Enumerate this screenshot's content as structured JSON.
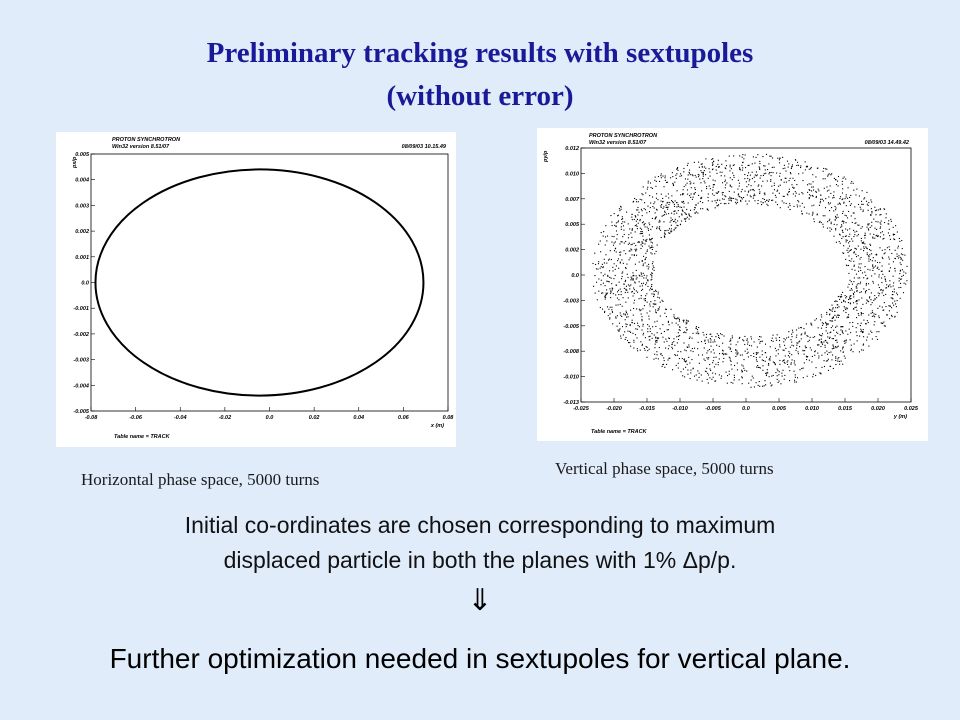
{
  "title": {
    "line1": "Preliminary tracking results with sextupoles",
    "line2": "(without error)"
  },
  "chart_data": [
    {
      "type": "scatter",
      "header_left": [
        "PROTON SYNCHROTRON",
        "Win32 version 8.51/07"
      ],
      "header_right": "08/09/03 10.15.49",
      "xlabel": "x (m)",
      "ylabel": "px/p",
      "footer": "Table name = TRACK",
      "xlim": [
        -0.08,
        0.08
      ],
      "ylim": [
        -0.005,
        0.005
      ],
      "xticks": [
        "-0.08",
        "-0.06",
        "-0.04",
        "-0.02",
        "0.0",
        "0.02",
        "0.04",
        "0.06",
        "0.08"
      ],
      "yticks": [
        "0.005",
        "0.004",
        "0.003",
        "0.002",
        "0.001",
        "0.0",
        "-0.001",
        "-0.002",
        "-0.003",
        "-0.004",
        "-0.005"
      ],
      "ellipse": {
        "x_center": -0.0045,
        "y_center": 0.0,
        "x_radius": 0.0735,
        "y_radius": 0.0044
      },
      "caption": "Horizontal phase space, 5000 turns"
    },
    {
      "type": "scatter",
      "header_left": [
        "PROTON SYNCHROTRON",
        "Win32 version 8.51/07"
      ],
      "header_right": "08/09/03 14.49.42",
      "xlabel": "y (m)",
      "ylabel": "py/p",
      "footer": "Table name = TRACK",
      "xlim": [
        -0.025,
        0.025
      ],
      "ylim": [
        -0.013,
        0.012
      ],
      "xticks": [
        "-0.025",
        "-0.020",
        "-0.015",
        "-0.010",
        "-0.005",
        "0.0",
        "0.005",
        "0.010",
        "0.015",
        "0.020",
        "0.025"
      ],
      "yticks": [
        "0.012",
        "0.010",
        "0.007",
        "0.005",
        "0.002",
        "0.0",
        "-0.003",
        "-0.005",
        "-0.008",
        "-0.010",
        "-0.013"
      ],
      "ring": {
        "x_center": 0.0005,
        "y_center": 0.0,
        "x_radius_outer": 0.024,
        "x_radius_inner": 0.0145,
        "y_radius_outer": 0.0115,
        "y_radius_inner": 0.0065
      },
      "caption": "Vertical phase space, 5000 turns"
    }
  ],
  "body": {
    "line1": "Initial co-ordinates are chosen corresponding to maximum",
    "line2": "displaced particle in both the planes with 1% Δp/p.",
    "arrow": "⇓",
    "conclusion": "Further optimization needed in sextupoles for vertical plane."
  }
}
